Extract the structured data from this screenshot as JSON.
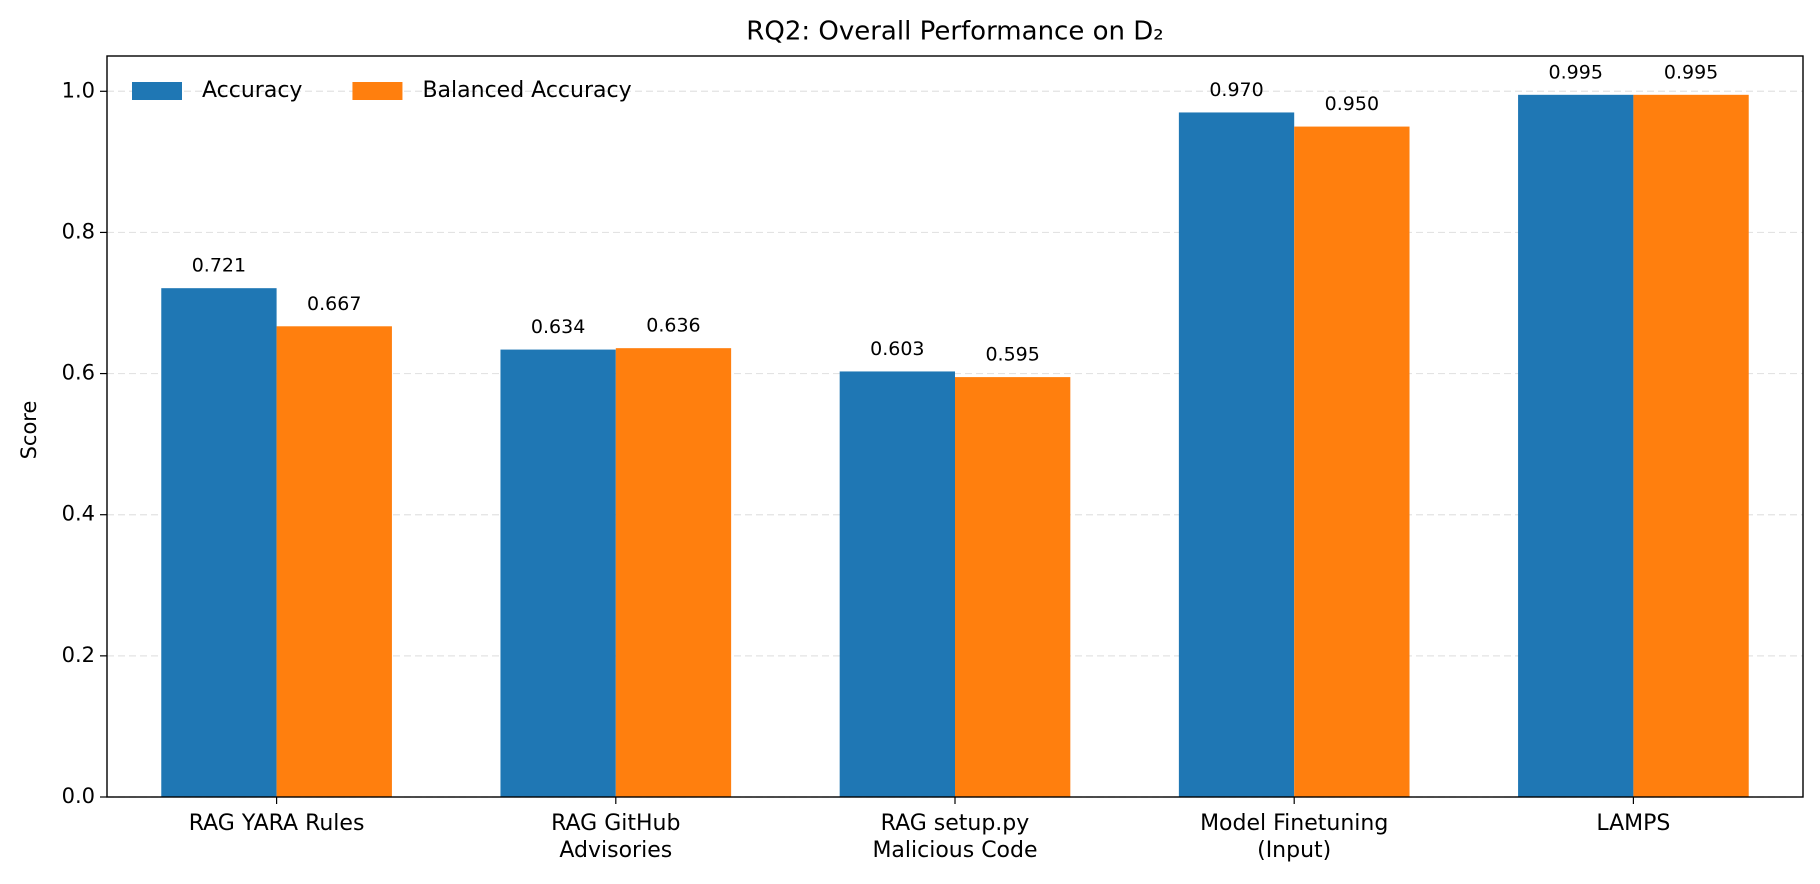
{
  "chart_data": {
    "type": "bar",
    "title": "RQ2: Overall Performance on D₂",
    "y_label": "Score",
    "categories": [
      "RAG YARA Rules",
      "RAG GitHub\nAdvisories",
      "RAG setup.py\nMalicious Code",
      "Model Finetuning\n(Input)",
      "LAMPS"
    ],
    "series": [
      {
        "name": "Accuracy",
        "color": "#1f77b4",
        "values": [
          0.721,
          0.634,
          0.603,
          0.97,
          0.995
        ],
        "value_labels": [
          "0.721",
          "0.634",
          "0.603",
          "0.970",
          "0.995"
        ]
      },
      {
        "name": "Balanced Accuracy",
        "color": "#ff7f0e",
        "values": [
          0.667,
          0.636,
          0.595,
          0.95,
          0.995
        ],
        "value_labels": [
          "0.667",
          "0.636",
          "0.595",
          "0.950",
          "0.995"
        ]
      }
    ],
    "ylim": [
      0,
      1.05
    ],
    "yticks": [
      {
        "value": 0,
        "label": "0.0"
      },
      0.2,
      0.4,
      0.6,
      0.8,
      {
        "value": 1,
        "label": "1.0"
      }
    ],
    "grid": true,
    "legend": "upper-left"
  }
}
